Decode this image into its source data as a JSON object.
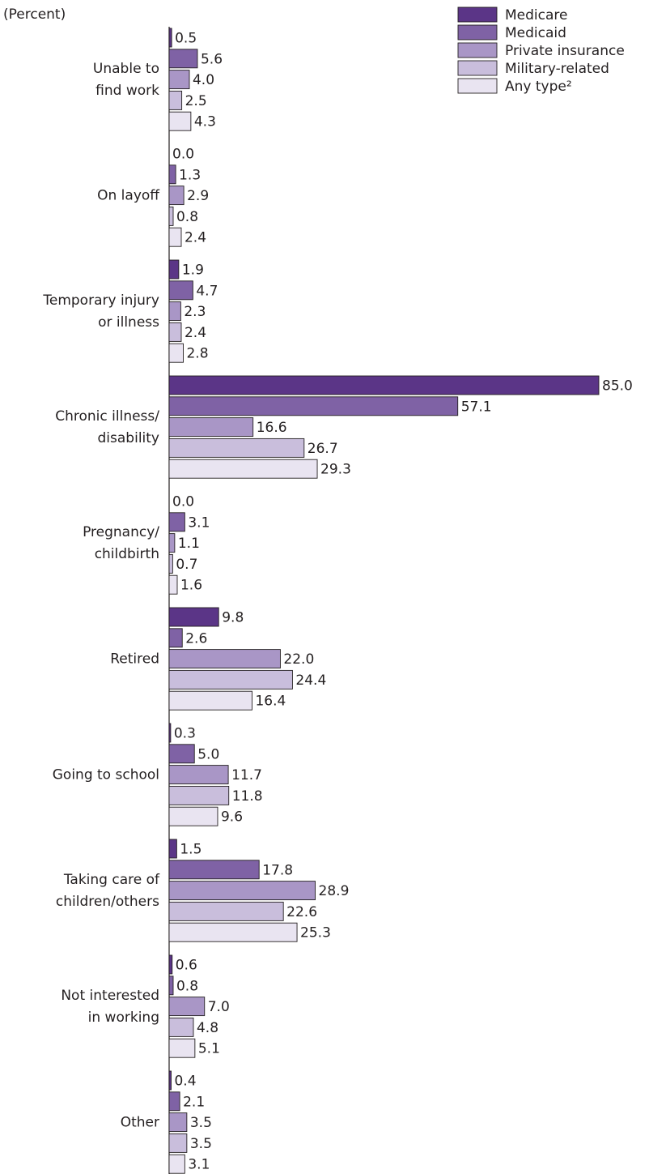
{
  "chart_data": {
    "type": "hbar",
    "unit_label": "(Percent)",
    "categories": [
      [
        "Unable to",
        "find work"
      ],
      [
        "On layoff"
      ],
      [
        "Temporary injury",
        "or illness"
      ],
      [
        "Chronic illness/",
        "disability"
      ],
      [
        "Pregnancy/",
        "childbirth"
      ],
      [
        "Retired"
      ],
      [
        "Going to school"
      ],
      [
        "Taking care of",
        "children/others"
      ],
      [
        "Not interested",
        "in working"
      ],
      [
        "Other"
      ]
    ],
    "series": [
      {
        "name": "Medicare",
        "color": "#5b3587",
        "values": [
          0.5,
          0,
          1.9,
          85,
          0,
          9.8,
          0.3,
          1.5,
          0.6,
          0.4
        ],
        "value_labels": [
          "0.5",
          "0.0",
          "1.9",
          "85.0",
          "0.0",
          "9.8",
          "0.3",
          "1.5",
          "0.6",
          "0.4"
        ]
      },
      {
        "name": "Medicaid",
        "color": "#7f62a5",
        "values": [
          5.6,
          1.3,
          4.7,
          57.1,
          3.1,
          2.6,
          5,
          17.8,
          0.8,
          2.1
        ],
        "value_labels": [
          "5.6",
          "1.3",
          "4.7",
          "57.1",
          "3.1",
          "2.6",
          "5.0",
          "17.8",
          "0.8",
          "2.1"
        ]
      },
      {
        "name": "Private insurance",
        "color": "#a996c6",
        "values": [
          4,
          2.9,
          2.3,
          16.6,
          1.1,
          22,
          11.7,
          28.9,
          7,
          3.5
        ],
        "value_labels": [
          "4.0",
          "2.9",
          "2.3",
          "16.6",
          "1.1",
          "22.0",
          "11.7",
          "28.9",
          "7.0",
          "3.5"
        ]
      },
      {
        "name": "Military-related",
        "color": "#c9bedc",
        "values": [
          2.5,
          0.8,
          2.4,
          26.7,
          0.7,
          24.4,
          11.8,
          22.6,
          4.8,
          3.5
        ],
        "value_labels": [
          "2.5",
          "0.8",
          "2.4",
          "26.7",
          "0.7",
          "24.4",
          "11.8",
          "22.6",
          "4.8",
          "3.5"
        ]
      },
      {
        "name": "Any type²",
        "color": "#e9e4f1",
        "values": [
          4.3,
          2.4,
          2.8,
          29.3,
          1.6,
          16.4,
          9.6,
          25.3,
          5.1,
          3.1
        ],
        "value_labels": [
          "4.3",
          "2.4",
          "2.8",
          "29.3",
          "1.6",
          "16.4",
          "9.6",
          "25.3",
          "5.1",
          "3.1"
        ]
      }
    ],
    "xlim": [
      0,
      85
    ],
    "legend": "top-right"
  }
}
